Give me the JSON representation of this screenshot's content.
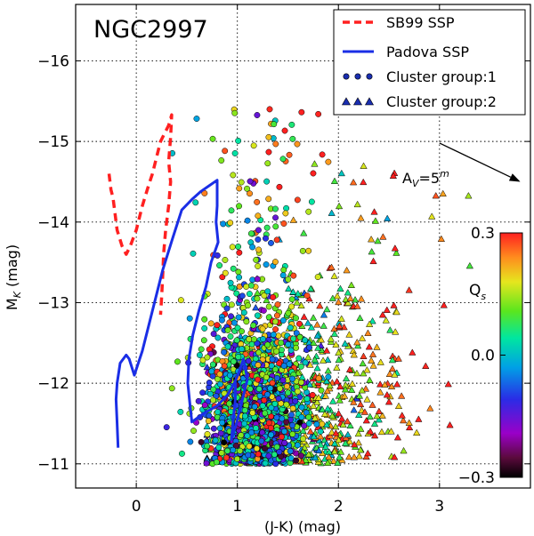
{
  "chart_data": {
    "type": "scatter",
    "title": "NGC2997",
    "xlabel_main": "(J-K) (mag)",
    "ylabel_main": "M",
    "ylabel_sub": "K",
    "ylabel_unit": " (mag)",
    "xlim": [
      -0.6,
      3.9
    ],
    "ylim": [
      -10.7,
      -16.7
    ],
    "x_ticks": [
      {
        "value": 0,
        "label": "0"
      },
      {
        "value": 1,
        "label": "1"
      },
      {
        "value": 2,
        "label": "2"
      },
      {
        "value": 3,
        "label": "3"
      }
    ],
    "y_ticks": [
      {
        "value": -11,
        "label": "−11"
      },
      {
        "value": -12,
        "label": "−12"
      },
      {
        "value": -13,
        "label": "−13"
      },
      {
        "value": -14,
        "label": "−14"
      },
      {
        "value": -15,
        "label": "−15"
      },
      {
        "value": -16,
        "label": "−16"
      }
    ],
    "grid": true,
    "legend_position": "top-right",
    "legend": [
      {
        "label": "SB99 SSP",
        "kind": "dashed-line",
        "color": "#ff2020"
      },
      {
        "label": "Padova SSP",
        "kind": "solid-line",
        "color": "#1a2ee6"
      },
      {
        "label": "Cluster group:1",
        "kind": "circles",
        "color": "#1a2eb0"
      },
      {
        "label": "Cluster group:2",
        "kind": "triangles",
        "color": "#1a2eb0"
      }
    ],
    "series": [
      {
        "name": "SB99 SSP",
        "kind": "line",
        "color": "#ff2020",
        "points": [
          [
            -0.27,
            -14.6
          ],
          [
            -0.25,
            -14.4
          ],
          [
            -0.23,
            -14.3
          ],
          [
            -0.21,
            -14.1
          ],
          [
            -0.19,
            -13.9
          ],
          [
            -0.14,
            -13.7
          ],
          [
            -0.1,
            -13.6
          ],
          [
            -0.06,
            -13.7
          ],
          [
            0.0,
            -13.9
          ],
          [
            0.06,
            -14.2
          ],
          [
            0.12,
            -14.45
          ],
          [
            0.16,
            -14.6
          ],
          [
            0.2,
            -14.8
          ],
          [
            0.24,
            -15.0
          ],
          [
            0.28,
            -15.1
          ],
          [
            0.32,
            -15.2
          ],
          [
            0.35,
            -15.33
          ],
          [
            0.34,
            -15.05
          ],
          [
            0.32,
            -14.75
          ],
          [
            0.34,
            -14.5
          ],
          [
            0.32,
            -14.2
          ],
          [
            0.29,
            -13.9
          ],
          [
            0.27,
            -13.6
          ],
          [
            0.26,
            -13.3
          ],
          [
            0.25,
            -13.05
          ],
          [
            0.24,
            -12.85
          ]
        ]
      },
      {
        "name": "Padova SSP",
        "kind": "line",
        "color": "#1a2ee6",
        "points": [
          [
            -0.18,
            -11.2
          ],
          [
            -0.19,
            -11.5
          ],
          [
            -0.2,
            -11.8
          ],
          [
            -0.19,
            -12.0
          ],
          [
            -0.16,
            -12.25
          ],
          [
            -0.1,
            -12.35
          ],
          [
            -0.07,
            -12.3
          ],
          [
            -0.02,
            -12.1
          ],
          [
            0.06,
            -12.4
          ],
          [
            0.16,
            -12.9
          ],
          [
            0.26,
            -13.4
          ],
          [
            0.36,
            -13.8
          ],
          [
            0.45,
            -14.15
          ],
          [
            0.55,
            -14.28
          ],
          [
            0.64,
            -14.38
          ],
          [
            0.72,
            -14.45
          ],
          [
            0.8,
            -14.52
          ],
          [
            0.8,
            -14.2
          ],
          [
            0.79,
            -14.0
          ],
          [
            0.81,
            -13.75
          ],
          [
            0.74,
            -13.5
          ],
          [
            0.69,
            -13.2
          ],
          [
            0.62,
            -12.9
          ],
          [
            0.56,
            -12.6
          ],
          [
            0.52,
            -12.3
          ],
          [
            0.51,
            -12.0
          ],
          [
            0.53,
            -11.75
          ],
          [
            0.55,
            -11.52
          ],
          [
            0.66,
            -11.62
          ],
          [
            0.8,
            -11.72
          ],
          [
            0.9,
            -11.85
          ],
          [
            0.97,
            -12.0
          ],
          [
            1.02,
            -12.15
          ],
          [
            1.06,
            -12.3
          ],
          [
            1.1,
            -12.05
          ],
          [
            1.05,
            -11.8
          ],
          [
            0.99,
            -11.5
          ],
          [
            0.94,
            -11.3
          ],
          [
            0.96,
            -11.55
          ],
          [
            0.98,
            -11.8
          ],
          [
            0.98,
            -12.02
          ]
        ]
      }
    ],
    "annotation": {
      "text_main": "A",
      "text_sub": "V",
      "text_eq": "=5",
      "text_sup": "m",
      "arrow_from": [
        3.0,
        -14.98
      ],
      "arrow_to": [
        3.8,
        -14.5
      ]
    },
    "colorbar": {
      "label_main": "Q",
      "label_sub": "s",
      "range": [
        -0.3,
        0.3
      ],
      "ticks": [
        {
          "value": 0.3,
          "label": "0.3"
        },
        {
          "value": 0.0,
          "label": "0.0"
        },
        {
          "value": -0.3,
          "label": "−0.3"
        }
      ]
    },
    "cluster_groups": [
      {
        "name": "Cluster group:1",
        "marker": "circle",
        "approx_count": 2000,
        "x_range": [
          0.3,
          1.9
        ],
        "y_range": [
          -10.85,
          -15.6
        ]
      },
      {
        "name": "Cluster group:2",
        "marker": "triangle",
        "approx_count": 700,
        "x_range": [
          0.7,
          3.3
        ],
        "y_range": [
          -10.85,
          -14.9
        ]
      }
    ]
  }
}
